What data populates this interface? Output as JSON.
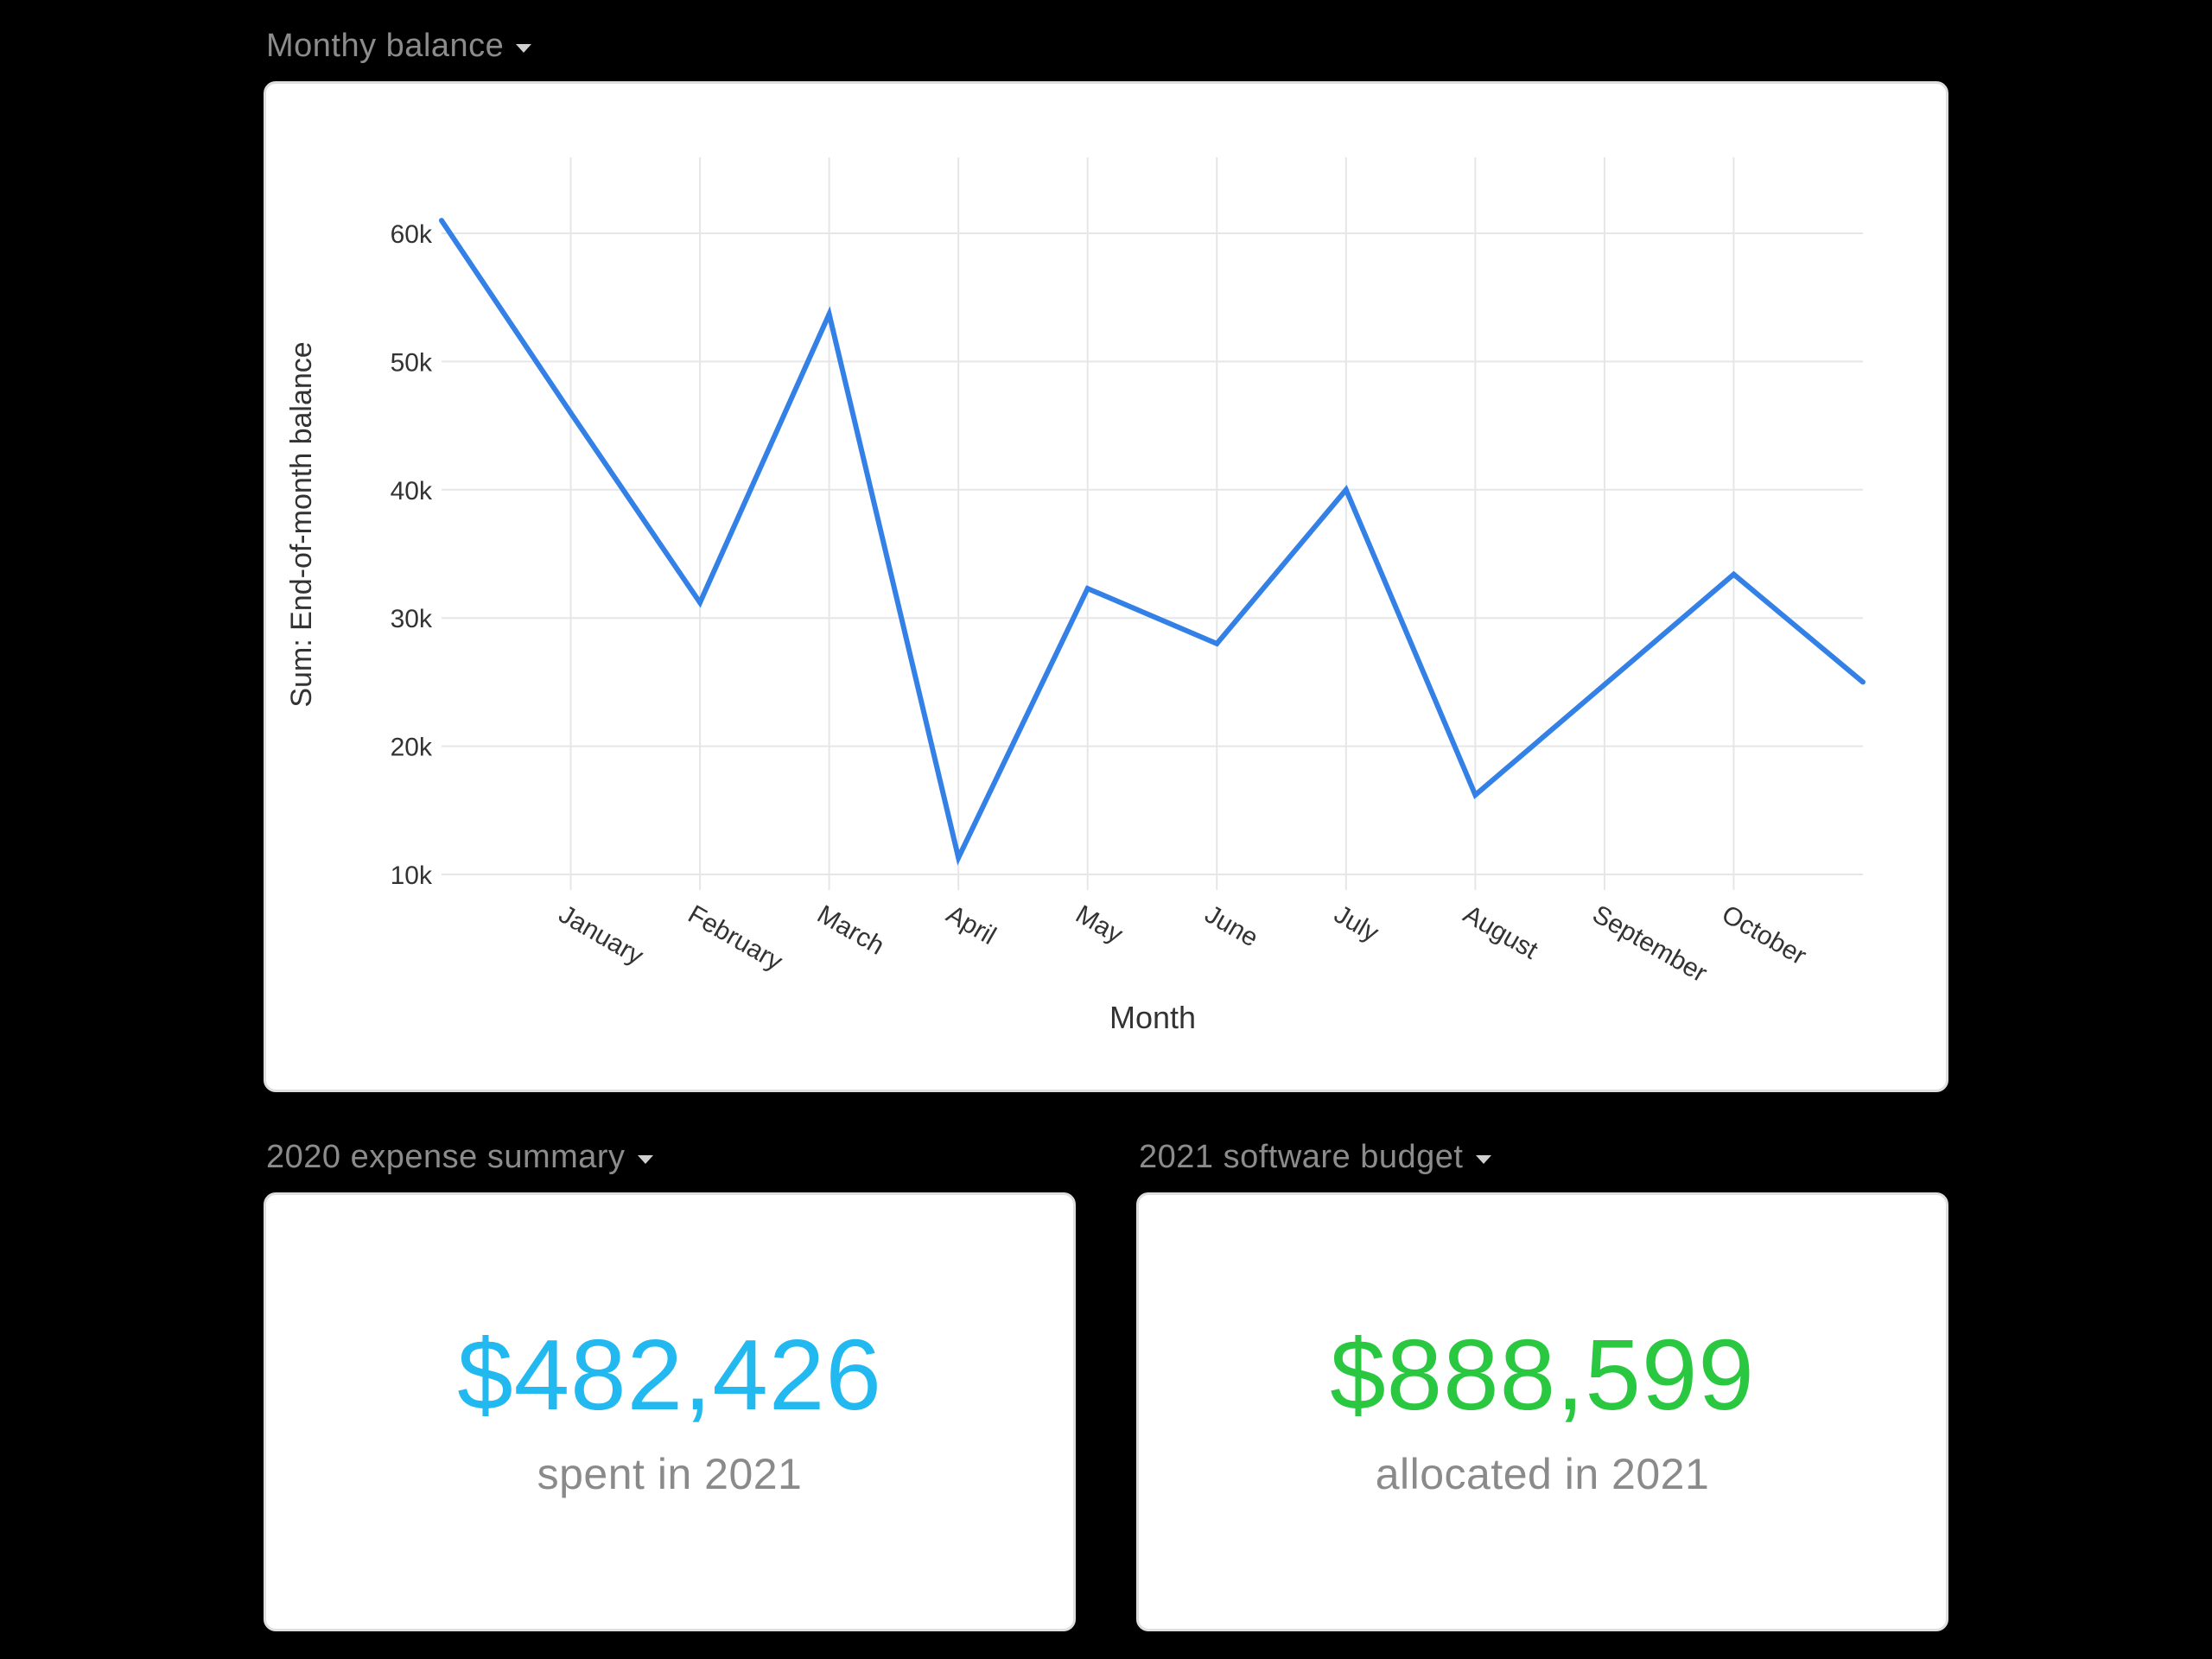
{
  "widgets": {
    "monthly_balance": {
      "title": "Monthy balance"
    },
    "expense_summary": {
      "title": "2020 expense summary",
      "value": "$482,426",
      "caption": "spent in 2021",
      "value_color": "#22b8f0"
    },
    "software_budget": {
      "title": "2021 software budget",
      "value": "$888,599",
      "caption": "allocated in 2021",
      "value_color": "#2ac840"
    }
  },
  "icons": {
    "dropdown": "caret-down-icon"
  },
  "colors": {
    "background": "#000000",
    "line": "#3380e6",
    "grid": "#e6e6e6"
  },
  "chart_data": {
    "type": "line",
    "xlabel": "Month",
    "ylabel": "Sum: End-of-month balance",
    "categories": [
      "",
      "January",
      "February",
      "March",
      "April",
      "May",
      "June",
      "July",
      "August",
      "September",
      "October",
      ""
    ],
    "tick_labels": [
      "January",
      "February",
      "March",
      "April",
      "May",
      "June",
      "July",
      "August",
      "September",
      "October"
    ],
    "values": [
      61000,
      46000,
      31200,
      53700,
      11300,
      32300,
      28000,
      40000,
      16200,
      24800,
      33400,
      25000
    ],
    "ylim": [
      10000,
      60000
    ],
    "yticks": [
      10000,
      20000,
      30000,
      40000,
      50000,
      60000
    ],
    "ytick_labels": [
      "10k",
      "20k",
      "30k",
      "40k",
      "50k",
      "60k"
    ],
    "grid": true,
    "legend": "none"
  }
}
